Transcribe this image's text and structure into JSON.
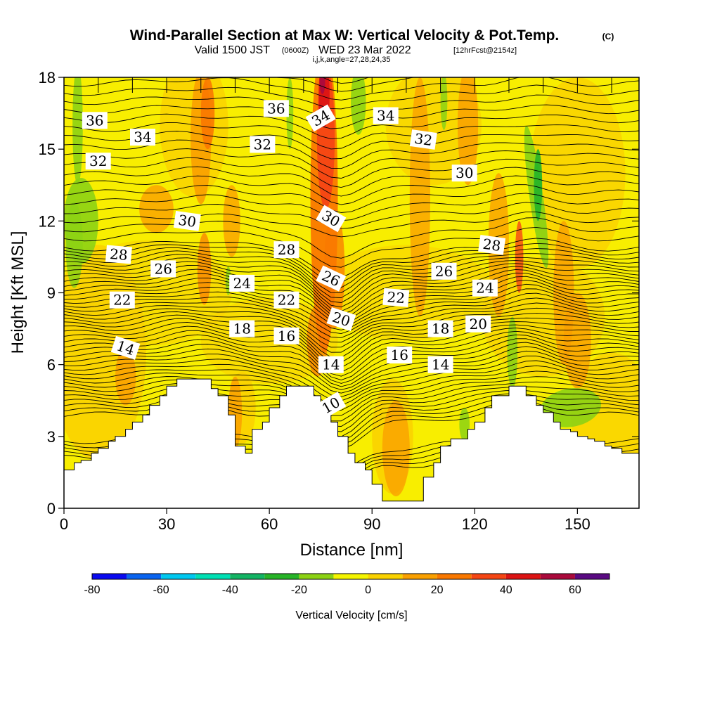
{
  "title": {
    "main": "Wind-Parallel Section at Max W: Vertical Velocity & Pot.Temp.",
    "main_mark": "(C)",
    "valid_prefix": "Valid 1500 JST",
    "valid_utc": "(0600Z)",
    "valid_date": "WED 23 Mar 2022",
    "valid_fcst": "[12hrFcst@2154z]",
    "indices": "i,j,k,angle=27,28,24,35"
  },
  "chart_data": {
    "type": "heatmap",
    "xlabel": "Distance [nm]",
    "ylabel": "Height [Kft MSL]",
    "xlim": [
      0,
      168
    ],
    "ylim": [
      0,
      18
    ],
    "x_ticks": [
      "0",
      "30",
      "60",
      "90",
      "120",
      "150"
    ],
    "x_tick_values": [
      0,
      30,
      60,
      90,
      120,
      150
    ],
    "y_ticks": [
      "0",
      "3",
      "6",
      "9",
      "12",
      "15",
      "18"
    ],
    "y_tick_values": [
      0,
      3,
      6,
      9,
      12,
      15,
      18
    ],
    "colorbar": {
      "label": "Vertical Velocity [cm/s]",
      "tick_labels": [
        "-80",
        "-60",
        "-40",
        "-20",
        "0",
        "20",
        "40",
        "60"
      ],
      "tick_values": [
        -80,
        -60,
        -40,
        -20,
        0,
        20,
        40,
        60
      ],
      "boundaries": [
        -80,
        -70,
        -60,
        -50,
        -40,
        -30,
        -20,
        -10,
        0,
        10,
        20,
        30,
        40,
        50,
        60,
        70
      ],
      "colors": [
        "#0a0af0",
        "#0a64f0",
        "#00c8f0",
        "#00e0b4",
        "#14b464",
        "#28b428",
        "#8cd214",
        "#f5f500",
        "#fad200",
        "#faa000",
        "#fa7800",
        "#f54614",
        "#dc1414",
        "#aa0a3c",
        "#5a0a82"
      ]
    },
    "terrain_x": [
      0,
      3,
      5,
      8,
      10,
      13,
      15,
      18,
      20,
      23,
      25,
      28,
      30,
      33,
      40,
      43,
      45,
      48,
      50,
      53,
      55,
      58,
      60,
      63,
      65,
      70,
      73,
      75,
      78,
      80,
      83,
      85,
      88,
      90,
      93,
      95,
      98,
      103,
      105,
      108,
      110,
      113,
      115,
      118,
      120,
      123,
      125,
      130,
      133,
      135,
      138,
      140,
      143,
      145,
      148,
      150,
      153,
      155,
      158,
      160,
      163,
      168
    ],
    "terrain_kft": [
      1.6,
      1.9,
      2.0,
      2.3,
      2.5,
      2.8,
      3.0,
      3.3,
      3.6,
      3.9,
      4.3,
      4.7,
      5.1,
      5.4,
      5.4,
      5.0,
      4.7,
      3.9,
      2.6,
      2.3,
      3.3,
      3.6,
      4.2,
      4.7,
      5.1,
      5.1,
      4.7,
      4.2,
      3.6,
      3.0,
      2.3,
      1.9,
      1.6,
      1.0,
      0.3,
      0.3,
      0.3,
      0.3,
      1.3,
      1.9,
      2.6,
      2.9,
      2.9,
      3.3,
      3.6,
      4.2,
      4.7,
      5.1,
      5.1,
      4.7,
      4.3,
      4.0,
      3.6,
      3.3,
      3.2,
      3.0,
      2.9,
      2.8,
      2.6,
      2.5,
      2.3,
      2.0
    ],
    "theta_levels": [
      10,
      12,
      14,
      16,
      18,
      20,
      22,
      24,
      26,
      28,
      30,
      32,
      34,
      36
    ],
    "theta_label_texts": [
      "36",
      "34",
      "32",
      "30",
      "28",
      "26",
      "22",
      "14",
      "24",
      "18",
      "16",
      "22",
      "28",
      "32",
      "36",
      "34",
      "30",
      "26",
      "20",
      "14",
      "10",
      "34",
      "32",
      "30",
      "28",
      "26",
      "24",
      "22",
      "20",
      "18",
      "16",
      "14"
    ],
    "theta_label_points": [
      {
        "x": 9,
        "y": 16.2
      },
      {
        "x": 23,
        "y": 15.5
      },
      {
        "x": 10,
        "y": 14.5
      },
      {
        "x": 36,
        "y": 12.0
      },
      {
        "x": 16,
        "y": 10.6
      },
      {
        "x": 29,
        "y": 10.0
      },
      {
        "x": 17,
        "y": 8.7
      },
      {
        "x": 18,
        "y": 6.7
      },
      {
        "x": 52,
        "y": 9.4
      },
      {
        "x": 52,
        "y": 7.5
      },
      {
        "x": 65,
        "y": 7.2
      },
      {
        "x": 65,
        "y": 8.7
      },
      {
        "x": 65,
        "y": 10.8
      },
      {
        "x": 58,
        "y": 15.2
      },
      {
        "x": 62,
        "y": 16.7
      },
      {
        "x": 75,
        "y": 16.3
      },
      {
        "x": 78,
        "y": 12.1
      },
      {
        "x": 78,
        "y": 9.6
      },
      {
        "x": 81,
        "y": 7.9
      },
      {
        "x": 78,
        "y": 6.0
      },
      {
        "x": 78,
        "y": 4.3
      },
      {
        "x": 94,
        "y": 16.4
      },
      {
        "x": 105,
        "y": 15.4
      },
      {
        "x": 117,
        "y": 14.0
      },
      {
        "x": 125,
        "y": 11.0
      },
      {
        "x": 111,
        "y": 9.9
      },
      {
        "x": 123,
        "y": 9.2
      },
      {
        "x": 97,
        "y": 8.8
      },
      {
        "x": 121,
        "y": 7.7
      },
      {
        "x": 110,
        "y": 7.5
      },
      {
        "x": 98,
        "y": 6.4
      },
      {
        "x": 110,
        "y": 6.0
      }
    ],
    "theta_label_angles": [
      0,
      0,
      0,
      8,
      5,
      0,
      0,
      18,
      0,
      0,
      0,
      0,
      0,
      0,
      0,
      -30,
      30,
      25,
      18,
      0,
      -30,
      0,
      8,
      0,
      8,
      0,
      0,
      5,
      0,
      0,
      0,
      0
    ]
  }
}
